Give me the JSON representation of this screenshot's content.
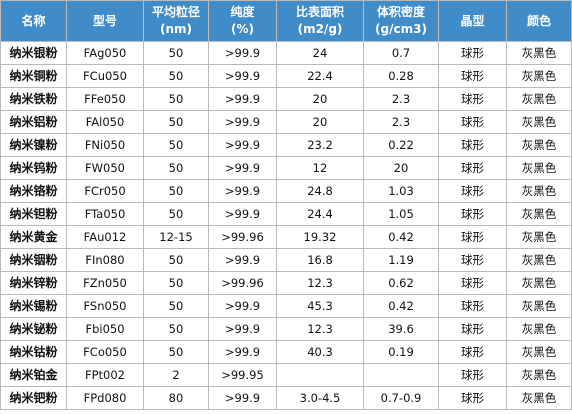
{
  "headers": [
    "名称",
    "型号",
    "平均粒径\n(nm)",
    "纯度\n(%)",
    "比表面积\n(m2/g)",
    "体积密度\n(g/cm3)",
    "晶型",
    "颜色"
  ],
  "rows": [
    [
      "纳米银粉",
      "FAg050",
      "50",
      ">99.9",
      "24",
      "0.7",
      "球形",
      "灰黑色"
    ],
    [
      "纳米铜粉",
      "FCu050",
      "50",
      ">99.9",
      "22.4",
      "0.28",
      "球形",
      "灰黑色"
    ],
    [
      "纳米铁粉",
      "FFe050",
      "50",
      ">99.9",
      "20",
      "2.3",
      "球形",
      "灰黑色"
    ],
    [
      "纳米铝粉",
      "FAl050",
      "50",
      ">99.9",
      "20",
      "2.3",
      "球形",
      "灰黑色"
    ],
    [
      "纳米镍粉",
      "FNi050",
      "50",
      ">99.9",
      "23.2",
      "0.22",
      "球形",
      "灰黑色"
    ],
    [
      "纳米钨粉",
      "FW050",
      "50",
      ">99.9",
      "12",
      "20",
      "球形",
      "灰黑色"
    ],
    [
      "纳米铬粉",
      "FCr050",
      "50",
      ">99.9",
      "24.8",
      "1.03",
      "球形",
      "灰黑色"
    ],
    [
      "纳米钽粉",
      "FTa050",
      "50",
      ">99.9",
      "24.4",
      "1.05",
      "球形",
      "灰黑色"
    ],
    [
      "纳米黄金",
      "FAu012",
      "12-15",
      ">99.96",
      "19.32",
      "0.42",
      "球形",
      "灰黑色"
    ],
    [
      "纳米铟粉",
      "FIn080",
      "50",
      ">99.9",
      "16.8",
      "1.19",
      "球形",
      "灰黑色"
    ],
    [
      "纳米锌粉",
      "FZn050",
      "50",
      ">99.96",
      "12.3",
      "0.62",
      "球形",
      "灰黑色"
    ],
    [
      "纳米锡粉",
      "FSn050",
      "50",
      ">99.9",
      "45.3",
      "0.42",
      "球形",
      "灰黑色"
    ],
    [
      "纳米铋粉",
      "Fbi050",
      "50",
      ">99.9",
      "12.3",
      "39.6",
      "球形",
      "灰黑色"
    ],
    [
      "纳米钴粉",
      "FCo050",
      "50",
      ">99.9",
      "40.3",
      "0.19",
      "球形",
      "灰黑色"
    ],
    [
      "纳米铂金",
      "FPt002",
      "2",
      ">99.95",
      "",
      "",
      "球形",
      "灰黑色"
    ],
    [
      "纳米钯粉",
      "FPd080",
      "80",
      ">99.9",
      "3.0-4.5",
      "0.7-0.9",
      "球形",
      "灰黑色"
    ]
  ]
}
